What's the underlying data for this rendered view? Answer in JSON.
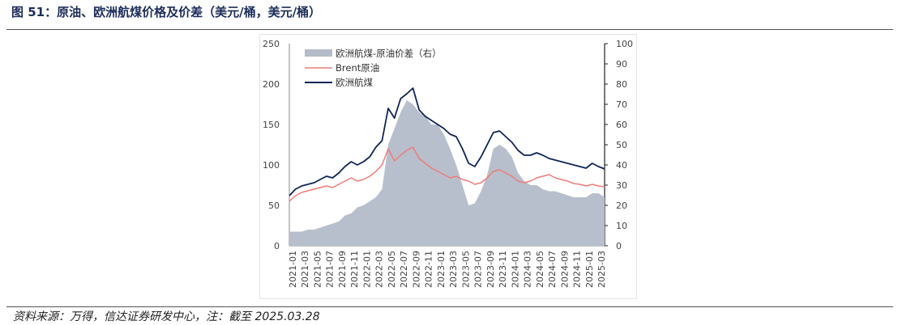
{
  "header": {
    "title": "图 51：原油、欧洲航煤价格及价差（美元/桶，美元/桶）"
  },
  "footer": {
    "source": "资料来源：万得，信达证券研发中心，注：截至 2025.03.28"
  },
  "colors": {
    "spread": "#b4bcc9",
    "brent": "#f07b78",
    "jet": "#0f2557",
    "title": "#1c2d5a"
  },
  "chart_data": {
    "type": "line",
    "title": "原油、欧洲航煤价格及价差（美元/桶，美元/桶）",
    "x_labels": [
      "2021-01",
      "2021-03",
      "2021-05",
      "2021-07",
      "2021-09",
      "2021-11",
      "2022-01",
      "2022-03",
      "2022-05",
      "2022-07",
      "2022-09",
      "2022-11",
      "2023-01",
      "2023-03",
      "2023-05",
      "2023-07",
      "2023-09",
      "2023-11",
      "2024-01",
      "2024-03",
      "2024-05",
      "2024-07",
      "2024-09",
      "2024-11",
      "2025-01",
      "2025-03"
    ],
    "y_left": {
      "min": 0,
      "max": 250,
      "ticks": [
        "0",
        "50",
        "100",
        "150",
        "200",
        "250"
      ]
    },
    "y_right": {
      "min": 0,
      "max": 100,
      "ticks": [
        "0",
        "10",
        "20",
        "30",
        "40",
        "50",
        "60",
        "70",
        "80",
        "90",
        "100"
      ]
    },
    "legend": [
      "欧洲航煤-原油价差（右）",
      "Brent原油",
      "欧洲航煤"
    ],
    "series": [
      {
        "name": "欧洲航煤-原油价差（右）",
        "type": "area",
        "axis": "right",
        "x": [
          0,
          1,
          2,
          3,
          4,
          5,
          6,
          7,
          8,
          9,
          10,
          11,
          12,
          13,
          14,
          15,
          16,
          17,
          18,
          19,
          20,
          21,
          22,
          23,
          24,
          25,
          26,
          27,
          28,
          29,
          30,
          31,
          32,
          33,
          34,
          35,
          36,
          37,
          38,
          39,
          40,
          41,
          42,
          43,
          44,
          45,
          46,
          47,
          48,
          49,
          50,
          51
        ],
        "values": [
          7,
          7,
          7,
          8,
          8,
          9,
          10,
          11,
          12,
          15,
          16,
          19,
          20,
          22,
          24,
          28,
          50,
          58,
          66,
          72,
          70,
          66,
          64,
          60,
          60,
          55,
          48,
          40,
          30,
          20,
          21,
          27,
          35,
          48,
          50,
          48,
          44,
          36,
          32,
          30,
          30,
          28,
          27,
          27,
          26,
          25,
          24,
          24,
          24,
          26,
          26,
          24
        ]
      },
      {
        "name": "Brent原油",
        "type": "line",
        "axis": "left",
        "x": [
          0,
          1,
          2,
          3,
          4,
          5,
          6,
          7,
          8,
          9,
          10,
          11,
          12,
          13,
          14,
          15,
          16,
          17,
          18,
          19,
          20,
          21,
          22,
          23,
          24,
          25,
          26,
          27,
          28,
          29,
          30,
          31,
          32,
          33,
          34,
          35,
          36,
          37,
          38,
          39,
          40,
          41,
          42,
          43,
          44,
          45,
          46,
          47,
          48,
          49,
          50,
          51
        ],
        "values": [
          55,
          62,
          66,
          68,
          70,
          72,
          74,
          72,
          76,
          80,
          84,
          80,
          82,
          86,
          92,
          100,
          120,
          105,
          112,
          118,
          122,
          108,
          102,
          96,
          92,
          88,
          84,
          86,
          82,
          80,
          76,
          78,
          84,
          92,
          94,
          90,
          86,
          80,
          78,
          80,
          84,
          86,
          88,
          84,
          82,
          80,
          77,
          76,
          74,
          76,
          74,
          73
        ]
      },
      {
        "name": "欧洲航煤",
        "type": "line",
        "axis": "left",
        "x": [
          0,
          1,
          2,
          3,
          4,
          5,
          6,
          7,
          8,
          9,
          10,
          11,
          12,
          13,
          14,
          15,
          16,
          17,
          18,
          19,
          20,
          21,
          22,
          23,
          24,
          25,
          26,
          27,
          28,
          29,
          30,
          31,
          32,
          33,
          34,
          35,
          36,
          37,
          38,
          39,
          40,
          41,
          42,
          43,
          44,
          45,
          46,
          47,
          48,
          49,
          50,
          51
        ],
        "values": [
          62,
          70,
          74,
          76,
          78,
          82,
          86,
          84,
          90,
          98,
          104,
          100,
          104,
          110,
          122,
          130,
          170,
          158,
          182,
          188,
          195,
          168,
          160,
          155,
          150,
          145,
          138,
          135,
          120,
          102,
          98,
          110,
          125,
          140,
          142,
          135,
          128,
          118,
          112,
          112,
          115,
          112,
          108,
          106,
          104,
          102,
          100,
          98,
          96,
          102,
          98,
          95
        ]
      }
    ]
  }
}
